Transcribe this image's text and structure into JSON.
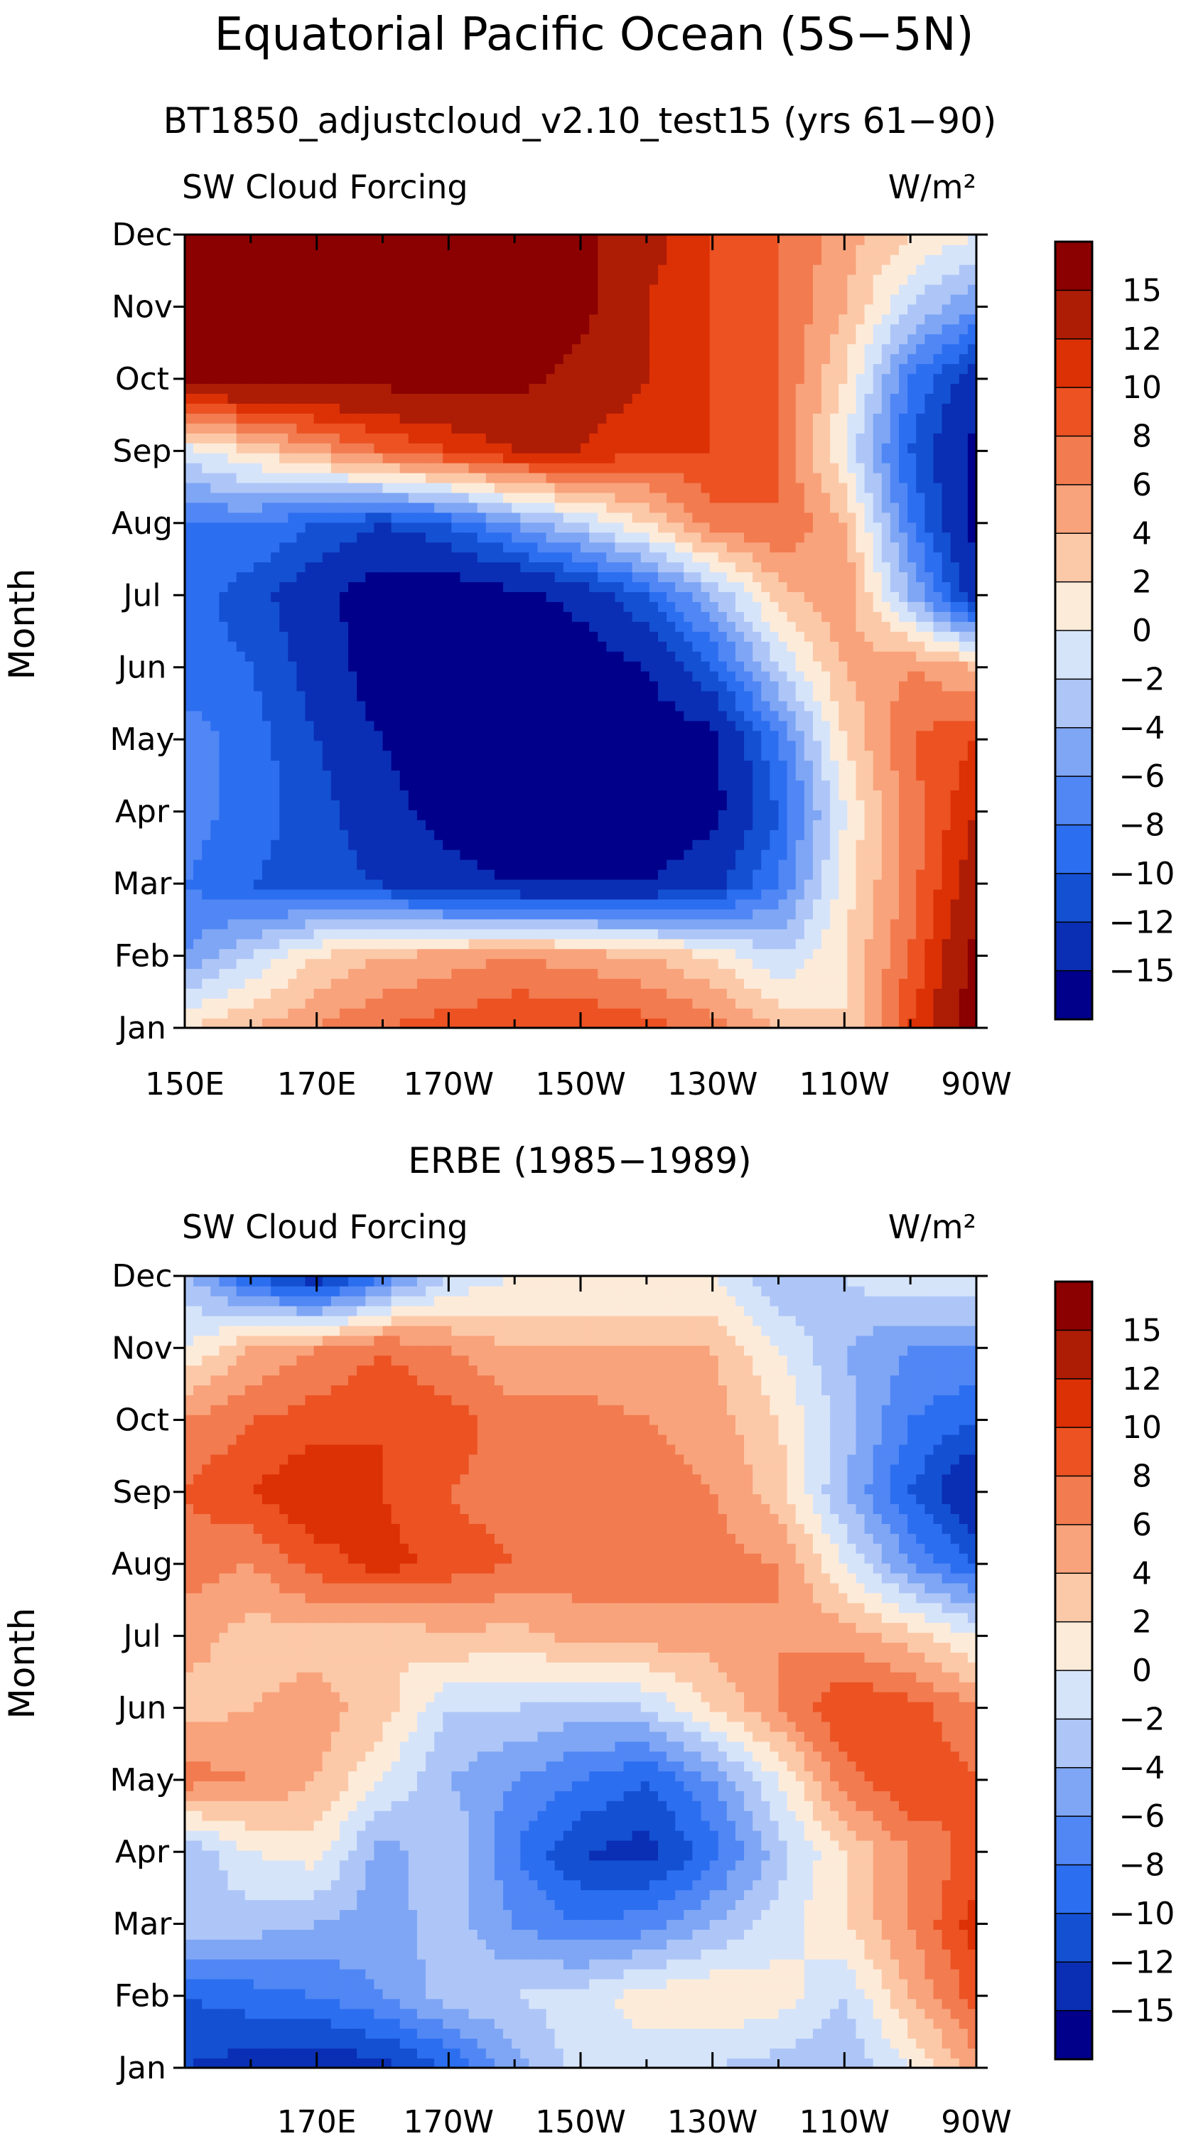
{
  "figure": {
    "title": "Equatorial Pacific Ocean (5S−5N)"
  },
  "colors": [
    "#00008b",
    "#0a2fb4",
    "#1450d2",
    "#2c6ef0",
    "#5087f5",
    "#7fa6f5",
    "#aec6f7",
    "#d6e4fa",
    "#fdebd9",
    "#fcc9a8",
    "#f8a37c",
    "#f27b50",
    "#ec5222",
    "#dc3005",
    "#ad1c05",
    "#8b0000"
  ],
  "colorbar": {
    "labels": [
      "15",
      "12",
      "10",
      "8",
      "6",
      "4",
      "2",
      "0",
      "−2",
      "−4",
      "−6",
      "−8",
      "−10",
      "−12",
      "−15"
    ]
  },
  "chart_data": [
    {
      "type": "heatmap",
      "name": "model",
      "title": "BT1850_adjustcloud_v2.10_test15 (yrs 61−90)",
      "left_label": "SW Cloud Forcing",
      "units_label": "W/m²",
      "ylabel": "Month",
      "months": [
        "Jan",
        "Feb",
        "Mar",
        "Apr",
        "May",
        "Jun",
        "Jul",
        "Aug",
        "Sep",
        "Oct",
        "Nov",
        "Dec"
      ],
      "lons": [
        150,
        160,
        170,
        180,
        190,
        200,
        210,
        220,
        230,
        240,
        250,
        260,
        270
      ],
      "x_ticks": [
        "150E",
        "170E",
        "170W",
        "150W",
        "130W",
        "110W",
        "90W"
      ],
      "levels": [
        -15,
        -12,
        -10,
        -8,
        -6,
        -4,
        -2,
        0,
        2,
        4,
        6,
        8,
        10,
        12,
        15
      ],
      "values": [
        [
          2,
          4,
          6,
          8,
          9,
          10,
          10,
          9,
          7,
          4,
          2,
          10,
          17
        ],
        [
          -6,
          -2,
          2,
          4,
          5,
          6,
          5,
          4,
          2,
          -2,
          2,
          8,
          16
        ],
        [
          -8,
          -10,
          -11,
          -12,
          -14,
          -15,
          -15,
          -15,
          -13,
          -8,
          1,
          7,
          14
        ],
        [
          -7,
          -9,
          -11,
          -14,
          -16,
          -17,
          -17,
          -17,
          -16,
          -10,
          0,
          7,
          12
        ],
        [
          -7,
          -9,
          -12,
          -15,
          -17,
          -17,
          -17,
          -17,
          -16,
          -8,
          2,
          8,
          10
        ],
        [
          -9,
          -10,
          -13,
          -17,
          -17,
          -17,
          -17,
          -15,
          -10,
          -2,
          4,
          6,
          4
        ],
        [
          -9,
          -11,
          -14,
          -17,
          -17,
          -16,
          -14,
          -10,
          -4,
          3,
          6,
          -4,
          -14
        ],
        [
          -8,
          -8,
          -10,
          -12,
          -10,
          -6,
          -2,
          2,
          7,
          8,
          4,
          -8,
          -16
        ],
        [
          -1,
          2,
          5,
          8,
          10,
          12,
          12,
          10,
          10,
          8,
          0,
          -10,
          -16
        ],
        [
          16,
          16,
          16,
          16,
          16,
          16,
          14,
          12,
          10,
          8,
          2,
          -8,
          -14
        ],
        [
          16,
          16,
          16,
          16,
          16,
          16,
          16,
          12,
          10,
          8,
          4,
          -2,
          -6
        ],
        [
          15,
          16,
          16,
          16,
          16,
          16,
          16,
          13,
          10,
          8,
          5,
          2,
          0
        ]
      ]
    },
    {
      "type": "heatmap",
      "name": "observed",
      "title": "ERBE (1985−1989)",
      "left_label": "SW Cloud Forcing",
      "units_label": "W/m²",
      "ylabel": "Month",
      "months": [
        "Jan",
        "Feb",
        "Mar",
        "Apr",
        "May",
        "Jun",
        "Jul",
        "Aug",
        "Sep",
        "Oct",
        "Nov",
        "Dec"
      ],
      "lons": [
        150,
        160,
        170,
        180,
        190,
        200,
        210,
        220,
        230,
        240,
        250,
        260,
        270
      ],
      "x_ticks": [
        "170E",
        "170W",
        "150W",
        "130W",
        "110W",
        "90W"
      ],
      "levels": [
        -15,
        -12,
        -10,
        -8,
        -6,
        -4,
        -2,
        0,
        2,
        4,
        6,
        8,
        10,
        12,
        15
      ],
      "values": [
        [
          -12,
          -13,
          -14,
          -13,
          -10,
          -5,
          -1,
          -1,
          -2,
          -3,
          -4,
          0,
          5
        ],
        [
          -10,
          -9,
          -8,
          -6,
          -3,
          -2,
          -1,
          1,
          2,
          1,
          -2,
          4,
          9
        ],
        [
          -3,
          -3,
          -4,
          -5,
          -3,
          -6,
          -8,
          -7,
          -4,
          -1,
          2,
          6,
          11
        ],
        [
          -4,
          0,
          1,
          -5,
          -2,
          -8,
          -12,
          -13,
          -9,
          -3,
          2,
          6,
          9
        ],
        [
          7,
          6,
          4,
          0,
          -4,
          -6,
          -8,
          -10,
          -6,
          0,
          7,
          10,
          8
        ],
        [
          3,
          4,
          5,
          3,
          -2,
          -2,
          -3,
          -2,
          2,
          6,
          10,
          9,
          6
        ],
        [
          5,
          3,
          3,
          2,
          4,
          3,
          5,
          5,
          5,
          6,
          5,
          3,
          0
        ],
        [
          7,
          6,
          9,
          11,
          9,
          8,
          7,
          7,
          7,
          6,
          0,
          -6,
          -10
        ],
        [
          8,
          10,
          12,
          10,
          8,
          7,
          7,
          7,
          6,
          3,
          -4,
          -10,
          -15
        ],
        [
          6,
          8,
          9,
          10,
          9,
          7,
          7,
          6,
          5,
          2,
          -3,
          -8,
          -10
        ],
        [
          0,
          4,
          6,
          8,
          6,
          4,
          4,
          4,
          4,
          0,
          -4,
          -6,
          -6
        ],
        [
          -3,
          -10,
          -14,
          -8,
          -2,
          0,
          0,
          0,
          0,
          -4,
          -2,
          0,
          0
        ]
      ]
    }
  ]
}
